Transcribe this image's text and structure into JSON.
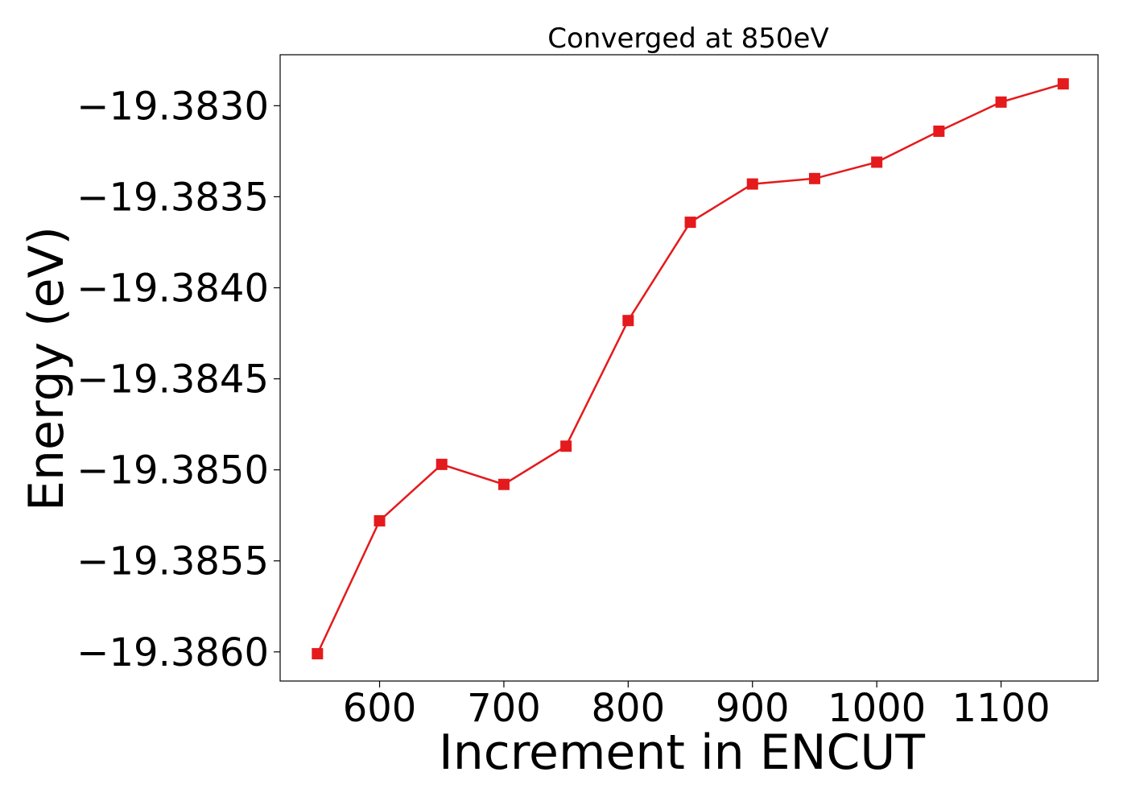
{
  "chart_data": {
    "type": "line",
    "title": "Converged at 850eV",
    "xlabel": "Increment in ENCUT",
    "ylabel": "Energy (eV)",
    "x": [
      550,
      600,
      650,
      700,
      750,
      800,
      850,
      900,
      950,
      1000,
      1050,
      1100,
      1150
    ],
    "series": [
      {
        "values": [
          -19.38601,
          -19.38528,
          -19.38497,
          -19.38508,
          -19.38487,
          -19.38418,
          -19.38364,
          -19.38343,
          -19.3834,
          -19.38331,
          -19.38314,
          -19.38298,
          -19.38288
        ],
        "color": "#e41a1c",
        "marker": "square"
      }
    ],
    "xlim": [
      520,
      1178
    ],
    "ylim": [
      -19.38616,
      -19.38272
    ],
    "xticks": [
      600,
      700,
      800,
      900,
      1000,
      1100
    ],
    "xtick_labels": [
      "600",
      "700",
      "800",
      "900",
      "1000",
      "1100"
    ],
    "yticks": [
      -19.386,
      -19.3855,
      -19.385,
      -19.3845,
      -19.384,
      -19.3835,
      -19.383
    ],
    "ytick_labels": [
      "−19.3860",
      "−19.3855",
      "−19.3850",
      "−19.3845",
      "−19.3840",
      "−19.3835",
      "−19.3830"
    ],
    "grid": false,
    "legend": false
  }
}
